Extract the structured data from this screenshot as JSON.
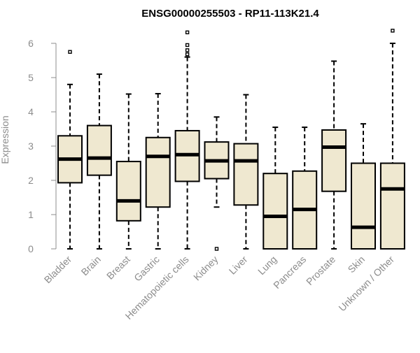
{
  "chart_data": {
    "type": "boxplot",
    "title": "ENSG00000255503 - RP11-113K21.4",
    "xlabel": "",
    "ylabel": "Expression",
    "ylim": [
      0,
      6.3
    ],
    "yticks": [
      0,
      1,
      2,
      3,
      4,
      5,
      6
    ],
    "grid": false,
    "box_color": "#efe8d0",
    "line_color": "#000000",
    "categories": [
      "Bladder",
      "Brain",
      "Breast",
      "Gastric",
      "Hematopoietic cells",
      "Kidney",
      "Liver",
      "Lung",
      "Pancreas",
      "Prostate",
      "Skin",
      "Unknown / Other"
    ],
    "boxes": [
      {
        "name": "Bladder",
        "whisker_low": 0,
        "q1": 1.93,
        "median": 2.62,
        "q3": 3.3,
        "whisker_high": 4.8,
        "outliers": [
          5.75
        ]
      },
      {
        "name": "Brain",
        "whisker_low": 0,
        "q1": 2.15,
        "median": 2.65,
        "q3": 3.6,
        "whisker_high": 5.1,
        "outliers": []
      },
      {
        "name": "Breast",
        "whisker_low": 0,
        "q1": 0.82,
        "median": 1.4,
        "q3": 2.55,
        "whisker_high": 4.52,
        "outliers": []
      },
      {
        "name": "Gastric",
        "whisker_low": 0,
        "q1": 1.22,
        "median": 2.7,
        "q3": 3.25,
        "whisker_high": 4.53,
        "outliers": []
      },
      {
        "name": "Hematopoietic cells",
        "whisker_low": 0,
        "q1": 1.97,
        "median": 2.75,
        "q3": 3.45,
        "whisker_high": 5.6,
        "outliers": [
          5.68,
          5.8,
          5.95,
          6.32
        ]
      },
      {
        "name": "Kidney",
        "whisker_low": 1.22,
        "q1": 2.05,
        "median": 2.57,
        "q3": 3.12,
        "whisker_high": 3.85,
        "outliers": [
          0.0
        ]
      },
      {
        "name": "Liver",
        "whisker_low": 0,
        "q1": 1.28,
        "median": 2.57,
        "q3": 3.07,
        "whisker_high": 4.5,
        "outliers": []
      },
      {
        "name": "Lung",
        "whisker_low": 0,
        "q1": 0,
        "median": 0.95,
        "q3": 2.2,
        "whisker_high": 3.55,
        "outliers": []
      },
      {
        "name": "Pancreas",
        "whisker_low": 0,
        "q1": 0,
        "median": 1.15,
        "q3": 2.27,
        "whisker_high": 3.55,
        "outliers": []
      },
      {
        "name": "Prostate",
        "whisker_low": 0,
        "q1": 1.68,
        "median": 2.97,
        "q3": 3.47,
        "whisker_high": 5.48,
        "outliers": []
      },
      {
        "name": "Skin",
        "whisker_low": 0,
        "q1": 0,
        "median": 0.63,
        "q3": 2.5,
        "whisker_high": 3.65,
        "outliers": []
      },
      {
        "name": "Unknown / Other",
        "whisker_low": 0,
        "q1": 0,
        "median": 1.75,
        "q3": 2.5,
        "whisker_high": 6.0,
        "outliers": [
          6.37
        ]
      }
    ]
  }
}
